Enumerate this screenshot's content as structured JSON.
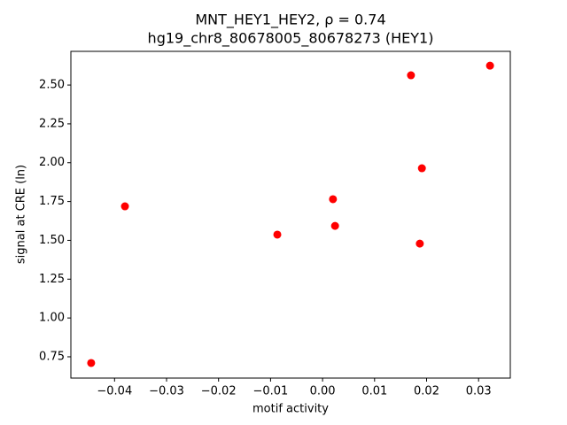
{
  "chart_data": {
    "type": "scatter",
    "title": "MNT_HEY1_HEY2, ρ = 0.74",
    "subtitle": "hg19_chr8_80678005_80678273 (HEY1)",
    "x_label": "motif activity",
    "y_label": "signal at CRE (ln)",
    "color": "#ff0000",
    "x": [
      -0.0445,
      -0.038,
      -0.0087,
      0.002,
      0.0024,
      0.017,
      0.0191,
      0.0187,
      0.0322
    ],
    "values": [
      0.71,
      1.719,
      1.537,
      1.765,
      1.593,
      2.563,
      1.964,
      1.479,
      2.625
    ],
    "xlim": [
      -0.0484,
      0.0361
    ],
    "ylim": [
      0.613,
      2.717
    ],
    "xticks": [
      {
        "value": -0.04,
        "label": "−0.04"
      },
      {
        "value": -0.03,
        "label": "−0.03"
      },
      {
        "value": -0.02,
        "label": "−0.02"
      },
      {
        "value": -0.01,
        "label": "−0.01"
      },
      {
        "value": 0,
        "label": "0.00"
      },
      0.01,
      0.02,
      0.03
    ],
    "yticks": [
      0.75,
      {
        "value": 1,
        "label": "1.00"
      },
      1.25,
      {
        "value": 1.5,
        "label": "1.50"
      },
      1.75,
      {
        "value": 2,
        "label": "2.00"
      },
      2.25,
      {
        "value": 2.5,
        "label": "2.50"
      }
    ]
  }
}
